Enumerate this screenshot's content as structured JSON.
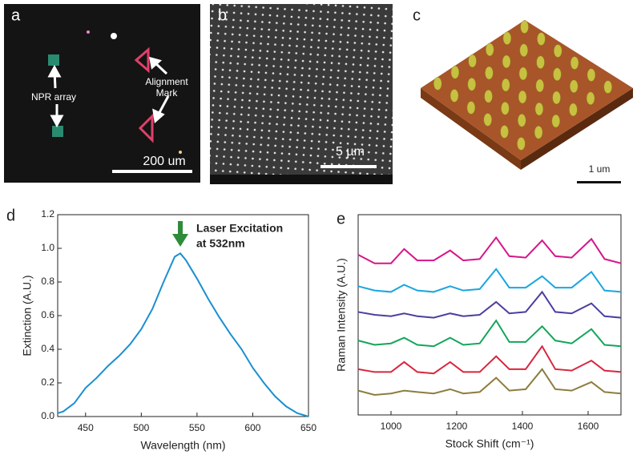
{
  "panels": {
    "a": {
      "letter": "a",
      "label_left": "NPR array",
      "label_right_lines": [
        "Alignment",
        "Mark"
      ],
      "scale": "200 um"
    },
    "b": {
      "letter": "b",
      "scale": "5 µm"
    },
    "c": {
      "letter": "c",
      "scale": "1 um"
    },
    "d": {
      "letter": "d"
    },
    "e": {
      "letter": "e"
    }
  },
  "chart_data": [
    {
      "type": "line",
      "xlabel": "Wavelength (nm)",
      "ylabel": "Extinction (A.U.)",
      "annotation_lines": [
        "Laser Excitation",
        "at 532nm"
      ],
      "x": [
        425,
        430,
        440,
        450,
        460,
        470,
        480,
        490,
        500,
        510,
        520,
        530,
        535,
        540,
        550,
        560,
        570,
        580,
        590,
        600,
        610,
        620,
        630,
        640,
        650
      ],
      "series": [
        {
          "color": "#1a8fd0",
          "values": [
            0.02,
            0.03,
            0.08,
            0.17,
            0.23,
            0.3,
            0.36,
            0.43,
            0.52,
            0.64,
            0.8,
            0.95,
            0.97,
            0.93,
            0.82,
            0.7,
            0.59,
            0.49,
            0.4,
            0.29,
            0.2,
            0.12,
            0.06,
            0.02,
            0.0
          ]
        }
      ],
      "xlim": [
        425,
        650
      ],
      "xticks": [
        450,
        500,
        550,
        600,
        650
      ],
      "ylim": [
        0,
        1.2
      ],
      "yticks": [
        {
          "value": 0,
          "label": "0.0"
        },
        0.2,
        0.4,
        0.6,
        0.8,
        {
          "value": 1,
          "label": "1.0"
        },
        1.2
      ]
    },
    {
      "type": "line",
      "xlabel": "Stock Shift (cm⁻¹)",
      "ylabel": "Raman Intensity (A.U.)",
      "x": [
        900,
        950,
        1000,
        1040,
        1080,
        1130,
        1180,
        1220,
        1270,
        1320,
        1360,
        1410,
        1460,
        1500,
        1550,
        1610,
        1650,
        1700
      ],
      "series": [
        {
          "color": "#d6168a",
          "values": [
            5.6,
            5.3,
            5.3,
            5.8,
            5.4,
            5.4,
            5.75,
            5.4,
            5.45,
            6.2,
            5.55,
            5.5,
            6.1,
            5.55,
            5.5,
            6.15,
            5.45,
            5.3
          ]
        },
        {
          "color": "#1aa6df",
          "values": [
            4.5,
            4.35,
            4.3,
            4.55,
            4.35,
            4.3,
            4.5,
            4.35,
            4.4,
            5.1,
            4.45,
            4.45,
            4.85,
            4.45,
            4.45,
            5.0,
            4.35,
            4.3
          ]
        },
        {
          "color": "#4a3fa0",
          "values": [
            3.6,
            3.5,
            3.45,
            3.55,
            3.45,
            3.4,
            3.55,
            3.45,
            3.5,
            3.95,
            3.55,
            3.6,
            4.3,
            3.6,
            3.55,
            3.9,
            3.45,
            3.4
          ]
        },
        {
          "color": "#13a65a",
          "values": [
            2.6,
            2.45,
            2.5,
            2.7,
            2.45,
            2.4,
            2.7,
            2.45,
            2.5,
            3.3,
            2.55,
            2.55,
            3.1,
            2.6,
            2.5,
            3.0,
            2.45,
            2.4
          ]
        },
        {
          "color": "#d8263f",
          "values": [
            1.6,
            1.5,
            1.5,
            1.85,
            1.5,
            1.45,
            1.85,
            1.5,
            1.5,
            2.05,
            1.6,
            1.6,
            2.4,
            1.6,
            1.55,
            1.9,
            1.55,
            1.5
          ]
        },
        {
          "color": "#8c7d3d",
          "values": [
            0.85,
            0.7,
            0.75,
            0.85,
            0.8,
            0.75,
            0.9,
            0.75,
            0.8,
            1.3,
            0.85,
            0.9,
            1.6,
            0.9,
            0.85,
            1.15,
            0.8,
            0.75
          ]
        }
      ],
      "xlim": [
        900,
        1700
      ],
      "xticks": [
        1000,
        1200,
        1400,
        1600
      ],
      "ylim": [
        0,
        7
      ]
    }
  ]
}
